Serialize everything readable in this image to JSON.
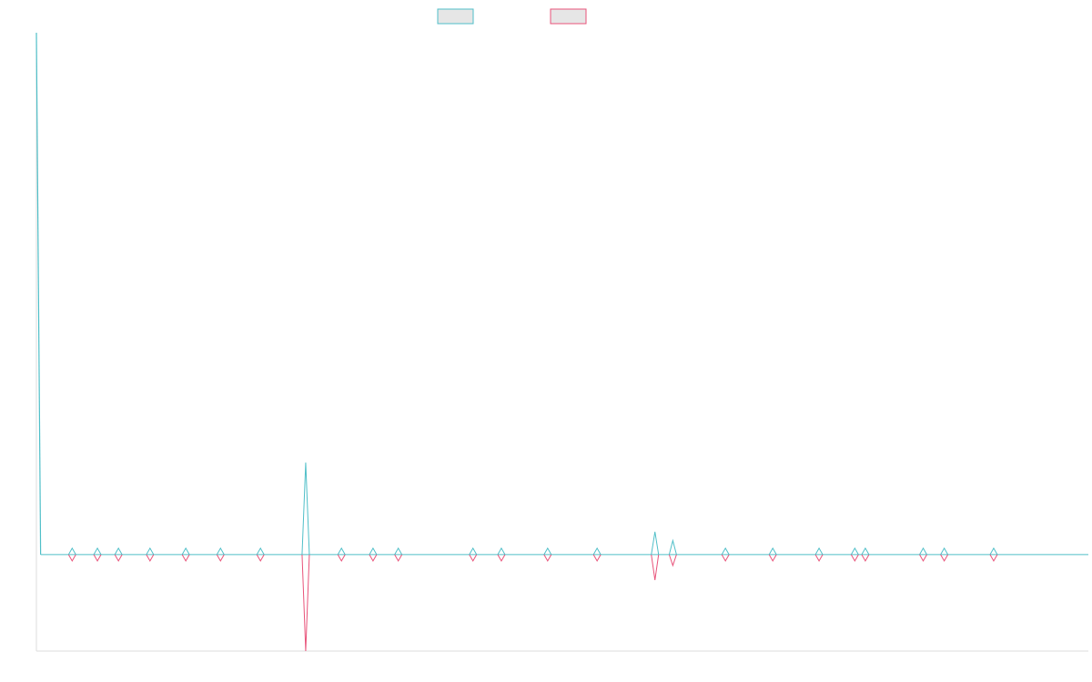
{
  "chart_data": {
    "type": "line",
    "title": "",
    "xlabel": "",
    "ylabel": "",
    "grid": false,
    "legend": "top-center",
    "xlim": [
      0,
      1000
    ],
    "ylim": [
      -220,
      1190
    ],
    "colors": {
      "upper": "#4fbfc8",
      "lower": "#e8537a",
      "legend_fill": "#e6e6e6",
      "axis": "#dddddd"
    },
    "spike": {
      "x": 0,
      "y": 1190
    },
    "series": [
      {
        "key": "upper",
        "x": [
          4,
          34,
          58,
          78,
          108,
          142,
          175,
          213,
          256,
          290,
          320,
          344,
          415,
          442,
          486,
          533,
          588,
          605,
          655,
          700,
          744,
          778,
          788,
          843,
          863,
          910
        ],
        "values": [
          0,
          0,
          0,
          0,
          0,
          0,
          0,
          0,
          210,
          0,
          0,
          0,
          0,
          0,
          0,
          0,
          52,
          32,
          0,
          0,
          0,
          0,
          0,
          0,
          0,
          0
        ]
      },
      {
        "key": "lower",
        "x": [
          4,
          34,
          58,
          78,
          108,
          142,
          175,
          213,
          256,
          290,
          320,
          344,
          415,
          442,
          486,
          533,
          588,
          605,
          655,
          700,
          744,
          778,
          788,
          843,
          863,
          910
        ],
        "values": [
          0,
          0,
          0,
          0,
          0,
          0,
          0,
          0,
          -220,
          0,
          0,
          0,
          0,
          0,
          0,
          0,
          -58,
          -25,
          0,
          0,
          0,
          0,
          0,
          0,
          0,
          0
        ]
      }
    ]
  }
}
